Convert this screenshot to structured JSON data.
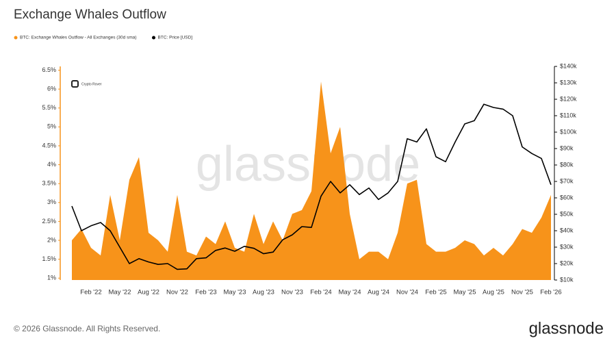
{
  "chart_data": {
    "type": "area-line",
    "title": "Exchange Whales Outflow",
    "x": [
      null,
      null,
      "Feb '22",
      null,
      null,
      "May '22",
      null,
      null,
      "Aug '22",
      null,
      null,
      "Nov '22",
      null,
      null,
      "Feb '23",
      null,
      null,
      "May '23",
      null,
      null,
      "Aug '23",
      null,
      null,
      "Nov '23",
      null,
      null,
      "Feb '24",
      null,
      null,
      "May '24",
      null,
      null,
      "Aug '24",
      null,
      null,
      "Nov '24",
      null,
      null,
      "Feb '25",
      null,
      null,
      "May '25",
      null,
      null,
      "Aug '25",
      null,
      null,
      "Nov '25",
      null,
      null,
      "Feb '26"
    ],
    "series": [
      {
        "name": "BTC: Exchange Whales Outflow - All Exchanges (30d sma)",
        "color": "#f7931a",
        "kind": "area",
        "values": [
          2.0,
          2.3,
          1.8,
          1.6,
          3.2,
          2.0,
          3.6,
          4.2,
          2.2,
          2.0,
          1.7,
          3.2,
          1.7,
          1.6,
          2.1,
          1.9,
          2.5,
          1.8,
          1.7,
          2.7,
          1.9,
          2.5,
          2.0,
          2.7,
          2.8,
          3.3,
          6.2,
          4.3,
          5.0,
          2.7,
          1.5,
          1.7,
          1.7,
          1.5,
          2.2,
          3.5,
          3.6,
          1.9,
          1.7,
          1.7,
          1.8,
          2.0,
          1.9,
          1.6,
          1.8,
          1.6,
          1.9,
          2.3,
          2.2,
          2.6,
          3.2
        ]
      },
      {
        "name": "BTC: Price [USD]",
        "color": "#000000",
        "kind": "line",
        "axis": "y2",
        "values": [
          55000,
          40000,
          43000,
          45000,
          40000,
          30000,
          20000,
          23000,
          21000,
          19500,
          20000,
          16500,
          16800,
          23000,
          23500,
          28000,
          29500,
          27500,
          30500,
          29300,
          26000,
          27000,
          34500,
          37500,
          42500,
          42000,
          61000,
          70000,
          63000,
          68000,
          62000,
          66000,
          59000,
          63000,
          70000,
          96000,
          94000,
          102000,
          85000,
          82000,
          94000,
          105000,
          107000,
          117000,
          115000,
          114000,
          110000,
          91000,
          87000,
          84000,
          68000
        ]
      }
    ],
    "ylim": [
      0.95,
      6.6
    ],
    "yticks": [
      {
        "value": 1,
        "label": "1%"
      },
      {
        "value": 1.5,
        "label": "1.5%"
      },
      {
        "value": 2,
        "label": "2%"
      },
      {
        "value": 2.5,
        "label": "2.5%"
      },
      {
        "value": 3,
        "label": "3%"
      },
      {
        "value": 3.5,
        "label": "3.5%"
      },
      {
        "value": 4,
        "label": "4%"
      },
      {
        "value": 4.5,
        "label": "4.5%"
      },
      {
        "value": 5,
        "label": "5%"
      },
      {
        "value": 5.5,
        "label": "5.5%"
      },
      {
        "value": 6,
        "label": "6%"
      },
      {
        "value": 6.5,
        "label": "6.5%"
      }
    ],
    "y2lim": [
      10000,
      140000
    ],
    "y2ticks": [
      {
        "value": 10000,
        "label": "$10k"
      },
      {
        "value": 20000,
        "label": "$20k"
      },
      {
        "value": 30000,
        "label": "$30k"
      },
      {
        "value": 40000,
        "label": "$40k"
      },
      {
        "value": 50000,
        "label": "$50k"
      },
      {
        "value": 60000,
        "label": "$60k"
      },
      {
        "value": 70000,
        "label": "$70k"
      },
      {
        "value": 80000,
        "label": "$80k"
      },
      {
        "value": 90000,
        "label": "$90k"
      },
      {
        "value": 100000,
        "label": "$100k"
      },
      {
        "value": 110000,
        "label": "$110k"
      },
      {
        "value": 120000,
        "label": "$120k"
      },
      {
        "value": 130000,
        "label": "$130k"
      },
      {
        "value": 140000,
        "label": "$140k"
      }
    ],
    "grid": false,
    "watermark": "glassnode",
    "badge": "Crypto Rover"
  },
  "footer": {
    "copyright": "© 2026 Glassnode. All Rights Reserved.",
    "logo": "glassnode"
  }
}
